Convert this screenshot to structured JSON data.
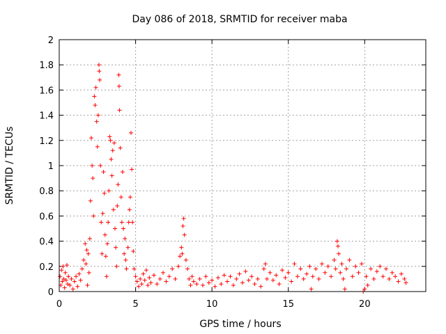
{
  "chart_data": {
    "type": "scatter",
    "title": "Day 086 of 2018, SRMTID for receiver maba",
    "xlabel": "GPS time / hours",
    "ylabel": "SRMTID / TECUs",
    "xlim": [
      0,
      24
    ],
    "ylim": [
      0,
      2
    ],
    "xticks": [
      0,
      5,
      10,
      15,
      20
    ],
    "yticks": [
      0,
      0.2,
      0.4,
      0.6,
      0.8,
      1,
      1.2,
      1.4,
      1.6,
      1.8,
      2
    ],
    "xtick_labels": [
      "0",
      "5",
      "10",
      "15",
      "20"
    ],
    "ytick_labels": [
      "0",
      "0.2",
      "0.4",
      "0.6",
      "0.8",
      "1",
      "1.2",
      "1.4",
      "1.6",
      "1.8",
      "2"
    ],
    "grid": true,
    "marker": "+",
    "color": "#ff0000",
    "series": [
      {
        "name": "SRMTID",
        "points": [
          [
            0.05,
            0.12
          ],
          [
            0.1,
            0.05
          ],
          [
            0.15,
            0.17
          ],
          [
            0.2,
            0.08
          ],
          [
            0.25,
            0.2
          ],
          [
            0.3,
            0.1
          ],
          [
            0.35,
            0.03
          ],
          [
            0.4,
            0.15
          ],
          [
            0.45,
            0.09
          ],
          [
            0.5,
            0.21
          ],
          [
            0.55,
            0.06
          ],
          [
            0.6,
            0.12
          ],
          [
            0.7,
            0.05
          ],
          [
            0.8,
            0.1
          ],
          [
            0.9,
            0.02
          ],
          [
            1.0,
            0.08
          ],
          [
            1.1,
            0.12
          ],
          [
            1.2,
            0.04
          ],
          [
            1.3,
            0.14
          ],
          [
            1.4,
            0.09
          ],
          [
            1.5,
            0.18
          ],
          [
            1.6,
            0.25
          ],
          [
            1.7,
            0.38
          ],
          [
            1.75,
            0.22
          ],
          [
            1.8,
            0.33
          ],
          [
            1.85,
            0.05
          ],
          [
            1.9,
            0.3
          ],
          [
            1.95,
            0.15
          ],
          [
            2.0,
            0.42
          ],
          [
            2.05,
            0.72
          ],
          [
            2.1,
            1.22
          ],
          [
            2.15,
            1.0
          ],
          [
            2.2,
            0.9
          ],
          [
            2.25,
            0.6
          ],
          [
            2.3,
            1.55
          ],
          [
            2.35,
            1.48
          ],
          [
            2.4,
            1.62
          ],
          [
            2.45,
            1.35
          ],
          [
            2.5,
            1.15
          ],
          [
            2.55,
            1.4
          ],
          [
            2.6,
            1.8
          ],
          [
            2.62,
            1.75
          ],
          [
            2.65,
            1.68
          ],
          [
            2.7,
            1.0
          ],
          [
            2.75,
            0.55
          ],
          [
            2.8,
            0.3
          ],
          [
            2.85,
            0.62
          ],
          [
            2.9,
            0.95
          ],
          [
            2.95,
            0.78
          ],
          [
            3.0,
            0.45
          ],
          [
            3.05,
            0.28
          ],
          [
            3.1,
            0.12
          ],
          [
            3.15,
            0.38
          ],
          [
            3.2,
            0.55
          ],
          [
            3.25,
            0.8
          ],
          [
            3.3,
            1.23
          ],
          [
            3.35,
            1.2
          ],
          [
            3.4,
            1.05
          ],
          [
            3.45,
            0.92
          ],
          [
            3.5,
            1.12
          ],
          [
            3.55,
            0.65
          ],
          [
            3.6,
            1.18
          ],
          [
            3.65,
            0.5
          ],
          [
            3.7,
            0.35
          ],
          [
            3.75,
            0.2
          ],
          [
            3.8,
            0.68
          ],
          [
            3.85,
            0.85
          ],
          [
            3.9,
            1.72
          ],
          [
            3.92,
            1.63
          ],
          [
            3.95,
            1.44
          ],
          [
            4.0,
            1.14
          ],
          [
            4.05,
            0.75
          ],
          [
            4.1,
            0.55
          ],
          [
            4.15,
            0.95
          ],
          [
            4.2,
            0.5
          ],
          [
            4.25,
            0.3
          ],
          [
            4.3,
            0.42
          ],
          [
            4.35,
            0.25
          ],
          [
            4.4,
            0.18
          ],
          [
            4.5,
            0.35
          ],
          [
            4.55,
            0.55
          ],
          [
            4.6,
            0.65
          ],
          [
            4.65,
            0.75
          ],
          [
            4.7,
            1.26
          ],
          [
            4.75,
            0.97
          ],
          [
            4.8,
            0.55
          ],
          [
            4.85,
            0.32
          ],
          [
            4.9,
            0.18
          ],
          [
            5.0,
            0.12
          ],
          [
            5.1,
            0.08
          ],
          [
            5.2,
            0.04
          ],
          [
            5.3,
            0.1
          ],
          [
            5.4,
            0.06
          ],
          [
            5.5,
            0.14
          ],
          [
            5.6,
            0.09
          ],
          [
            5.7,
            0.17
          ],
          [
            5.8,
            0.05
          ],
          [
            5.9,
            0.11
          ],
          [
            6.0,
            0.07
          ],
          [
            6.2,
            0.13
          ],
          [
            6.4,
            0.06
          ],
          [
            6.6,
            0.1
          ],
          [
            6.8,
            0.15
          ],
          [
            7.0,
            0.08
          ],
          [
            7.2,
            0.12
          ],
          [
            7.4,
            0.18
          ],
          [
            7.6,
            0.1
          ],
          [
            7.8,
            0.2
          ],
          [
            7.9,
            0.28
          ],
          [
            8.0,
            0.35
          ],
          [
            8.05,
            0.3
          ],
          [
            8.1,
            0.52
          ],
          [
            8.15,
            0.58
          ],
          [
            8.2,
            0.45
          ],
          [
            8.3,
            0.25
          ],
          [
            8.4,
            0.18
          ],
          [
            8.5,
            0.1
          ],
          [
            8.6,
            0.05
          ],
          [
            8.7,
            0.12
          ],
          [
            8.8,
            0.08
          ],
          [
            9.0,
            0.06
          ],
          [
            9.2,
            0.1
          ],
          [
            9.4,
            0.05
          ],
          [
            9.6,
            0.12
          ],
          [
            9.8,
            0.07
          ],
          [
            10.0,
            0.09
          ],
          [
            10.2,
            0.04
          ],
          [
            10.4,
            0.11
          ],
          [
            10.6,
            0.06
          ],
          [
            10.8,
            0.13
          ],
          [
            11.0,
            0.08
          ],
          [
            11.2,
            0.12
          ],
          [
            11.4,
            0.05
          ],
          [
            11.6,
            0.1
          ],
          [
            11.8,
            0.14
          ],
          [
            12.0,
            0.07
          ],
          [
            12.2,
            0.16
          ],
          [
            12.4,
            0.09
          ],
          [
            12.6,
            0.12
          ],
          [
            12.8,
            0.06
          ],
          [
            13.0,
            0.1
          ],
          [
            13.2,
            0.04
          ],
          [
            13.4,
            0.18
          ],
          [
            13.5,
            0.22
          ],
          [
            13.6,
            0.1
          ],
          [
            13.8,
            0.15
          ],
          [
            14.0,
            0.09
          ],
          [
            14.2,
            0.13
          ],
          [
            14.4,
            0.06
          ],
          [
            14.6,
            0.17
          ],
          [
            14.8,
            0.11
          ],
          [
            15.0,
            0.15
          ],
          [
            15.2,
            0.08
          ],
          [
            15.4,
            0.22
          ],
          [
            15.6,
            0.12
          ],
          [
            15.8,
            0.18
          ],
          [
            16.0,
            0.1
          ],
          [
            16.2,
            0.14
          ],
          [
            16.4,
            0.2
          ],
          [
            16.5,
            0.02
          ],
          [
            16.6,
            0.12
          ],
          [
            16.8,
            0.18
          ],
          [
            17.0,
            0.1
          ],
          [
            17.2,
            0.22
          ],
          [
            17.4,
            0.15
          ],
          [
            17.6,
            0.2
          ],
          [
            17.8,
            0.12
          ],
          [
            18.0,
            0.25
          ],
          [
            18.1,
            0.18
          ],
          [
            18.2,
            0.4
          ],
          [
            18.25,
            0.36
          ],
          [
            18.3,
            0.3
          ],
          [
            18.4,
            0.15
          ],
          [
            18.5,
            0.22
          ],
          [
            18.6,
            0.1
          ],
          [
            18.7,
            0.02
          ],
          [
            18.8,
            0.18
          ],
          [
            19.0,
            0.25
          ],
          [
            19.2,
            0.12
          ],
          [
            19.4,
            0.2
          ],
          [
            19.6,
            0.15
          ],
          [
            19.8,
            0.22
          ],
          [
            19.9,
            0.0
          ],
          [
            20.0,
            0.02
          ],
          [
            20.1,
            0.12
          ],
          [
            20.2,
            0.05
          ],
          [
            20.4,
            0.18
          ],
          [
            20.6,
            0.1
          ],
          [
            20.8,
            0.16
          ],
          [
            21.0,
            0.2
          ],
          [
            21.2,
            0.12
          ],
          [
            21.4,
            0.18
          ],
          [
            21.6,
            0.1
          ],
          [
            21.8,
            0.15
          ],
          [
            22.0,
            0.12
          ],
          [
            22.2,
            0.08
          ],
          [
            22.4,
            0.14
          ],
          [
            22.6,
            0.1
          ],
          [
            22.7,
            0.07
          ]
        ]
      }
    ]
  }
}
